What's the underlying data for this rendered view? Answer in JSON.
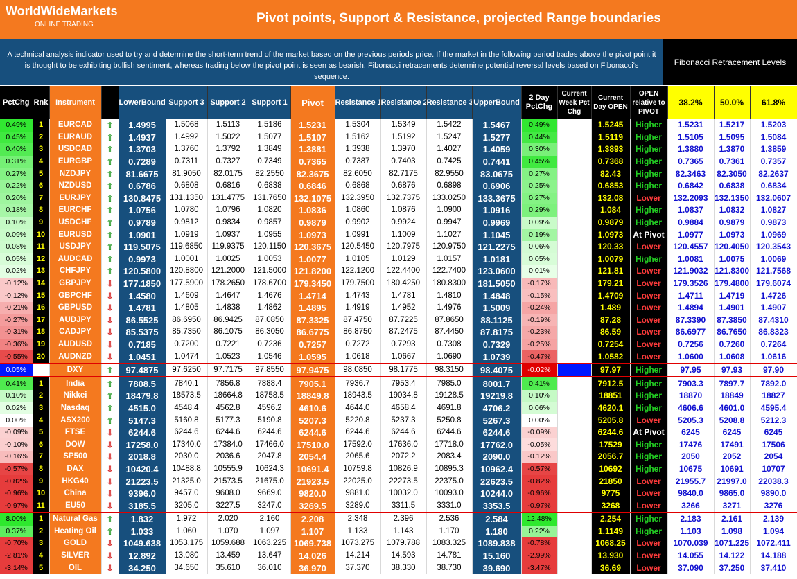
{
  "header": {
    "brand": "WorldWideMarkets",
    "brand_sub": "ONLINE TRADING",
    "title": "Pivot points, Support & Resistance, projected Range boundaries"
  },
  "description": "A technical analysis indicator used to try and determine the short-term trend of the market based on the previous periods price. If the market in the following period trades above the pivot point it is thought to be exhibiting bullish sentiment, whereas trading below the pivot point is seen as bearish. Fibonacci retracements determine potential reversal levels based on Fibonacci's sequence.",
  "fib_title": "Fibonacci Retracement Levels",
  "columns": {
    "pct": "PctChg",
    "rnk": "Rnk",
    "instrument": "Instrument",
    "lower": "LowerBound",
    "s3": "Support 3",
    "s2": "Support 2",
    "s1": "Support 1",
    "pivot": "Pivot",
    "r1": "Resistance 1",
    "r2": "Resistance 2",
    "r3": "Resistance 3",
    "upper": "UpperBound",
    "twoday": "2 Day PctChg",
    "week": "Current Week Pct Chg",
    "open": "Current Day OPEN",
    "rel": "OPEN relative to PIVOT",
    "f38": "38.2%",
    "f50": "50.0%",
    "f61": "61.8%"
  },
  "colors": {
    "orange": "#f4791f",
    "navy": "#174f7d",
    "up_arrow": "#2e9e2e",
    "down_arrow": "#d62d2d",
    "higher": "#22cc22",
    "lower": "#ff3b3b",
    "fib_text": "#1010d0"
  },
  "rows": [
    {
      "pct": "0.49%",
      "rnk": "1",
      "inst": "EURCAD",
      "dir": "up",
      "lb": "1.4995",
      "s3": "1.5068",
      "s2": "1.5113",
      "s1": "1.5186",
      "pv": "1.5231",
      "r1": "1.5304",
      "r2": "1.5349",
      "r3": "1.5422",
      "ub": "1.5467",
      "two": "0.49%",
      "open": "1.5245",
      "rel": "Higher",
      "f38": "1.5231",
      "f50": "1.5217",
      "f61": "1.5203"
    },
    {
      "pct": "0.45%",
      "rnk": "2",
      "inst": "EURAUD",
      "dir": "up",
      "lb": "1.4937",
      "s3": "1.4992",
      "s2": "1.5022",
      "s1": "1.5077",
      "pv": "1.5107",
      "r1": "1.5162",
      "r2": "1.5192",
      "r3": "1.5247",
      "ub": "1.5277",
      "two": "0.44%",
      "open": "1.5119",
      "rel": "Higher",
      "f38": "1.5105",
      "f50": "1.5095",
      "f61": "1.5084"
    },
    {
      "pct": "0.40%",
      "rnk": "3",
      "inst": "USDCAD",
      "dir": "up",
      "lb": "1.3703",
      "s3": "1.3760",
      "s2": "1.3792",
      "s1": "1.3849",
      "pv": "1.3881",
      "r1": "1.3938",
      "r2": "1.3970",
      "r3": "1.4027",
      "ub": "1.4059",
      "two": "0.30%",
      "open": "1.3893",
      "rel": "Higher",
      "f38": "1.3880",
      "f50": "1.3870",
      "f61": "1.3859"
    },
    {
      "pct": "0.31%",
      "rnk": "4",
      "inst": "EURGBP",
      "dir": "up",
      "lb": "0.7289",
      "s3": "0.7311",
      "s2": "0.7327",
      "s1": "0.7349",
      "pv": "0.7365",
      "r1": "0.7387",
      "r2": "0.7403",
      "r3": "0.7425",
      "ub": "0.7441",
      "two": "0.45%",
      "open": "0.7368",
      "rel": "Higher",
      "f38": "0.7365",
      "f50": "0.7361",
      "f61": "0.7357"
    },
    {
      "pct": "0.27%",
      "rnk": "5",
      "inst": "NZDJPY",
      "dir": "up",
      "lb": "81.6675",
      "s3": "81.9050",
      "s2": "82.0175",
      "s1": "82.2550",
      "pv": "82.3675",
      "r1": "82.6050",
      "r2": "82.7175",
      "r3": "82.9550",
      "ub": "83.0675",
      "two": "0.27%",
      "open": "82.43",
      "rel": "Higher",
      "f38": "82.3463",
      "f50": "82.3050",
      "f61": "82.2637"
    },
    {
      "pct": "0.22%",
      "rnk": "6",
      "inst": "NZDUSD",
      "dir": "up",
      "lb": "0.6786",
      "s3": "0.6808",
      "s2": "0.6816",
      "s1": "0.6838",
      "pv": "0.6846",
      "r1": "0.6868",
      "r2": "0.6876",
      "r3": "0.6898",
      "ub": "0.6906",
      "two": "0.25%",
      "open": "0.6853",
      "rel": "Higher",
      "f38": "0.6842",
      "f50": "0.6838",
      "f61": "0.6834"
    },
    {
      "pct": "0.20%",
      "rnk": "7",
      "inst": "EURJPY",
      "dir": "up",
      "lb": "130.8475",
      "s3": "131.1350",
      "s2": "131.4775",
      "s1": "131.7650",
      "pv": "132.1075",
      "r1": "132.3950",
      "r2": "132.7375",
      "r3": "133.0250",
      "ub": "133.3675",
      "two": "0.27%",
      "open": "132.08",
      "rel": "Lower",
      "f38": "132.2093",
      "f50": "132.1350",
      "f61": "132.0607"
    },
    {
      "pct": "0.18%",
      "rnk": "8",
      "inst": "EURCHF",
      "dir": "up",
      "lb": "1.0756",
      "s3": "1.0780",
      "s2": "1.0796",
      "s1": "1.0820",
      "pv": "1.0836",
      "r1": "1.0860",
      "r2": "1.0876",
      "r3": "1.0900",
      "ub": "1.0916",
      "two": "0.29%",
      "open": "1.084",
      "rel": "Higher",
      "f38": "1.0837",
      "f50": "1.0832",
      "f61": "1.0827"
    },
    {
      "pct": "0.10%",
      "rnk": "9",
      "inst": "USDCHF",
      "dir": "up",
      "lb": "0.9789",
      "s3": "0.9812",
      "s2": "0.9834",
      "s1": "0.9857",
      "pv": "0.9879",
      "r1": "0.9902",
      "r2": "0.9924",
      "r3": "0.9947",
      "ub": "0.9969",
      "two": "0.09%",
      "open": "0.9879",
      "rel": "Higher",
      "f38": "0.9884",
      "f50": "0.9879",
      "f61": "0.9873"
    },
    {
      "pct": "0.09%",
      "rnk": "10",
      "inst": "EURUSD",
      "dir": "up",
      "lb": "1.0901",
      "s3": "1.0919",
      "s2": "1.0937",
      "s1": "1.0955",
      "pv": "1.0973",
      "r1": "1.0991",
      "r2": "1.1009",
      "r3": "1.1027",
      "ub": "1.1045",
      "two": "0.19%",
      "open": "1.0973",
      "rel": "At Pivot",
      "f38": "1.0977",
      "f50": "1.0973",
      "f61": "1.0969"
    },
    {
      "pct": "0.08%",
      "rnk": "11",
      "inst": "USDJPY",
      "dir": "up",
      "lb": "119.5075",
      "s3": "119.6850",
      "s2": "119.9375",
      "s1": "120.1150",
      "pv": "120.3675",
      "r1": "120.5450",
      "r2": "120.7975",
      "r3": "120.9750",
      "ub": "121.2275",
      "two": "0.06%",
      "open": "120.33",
      "rel": "Lower",
      "f38": "120.4557",
      "f50": "120.4050",
      "f61": "120.3543"
    },
    {
      "pct": "0.05%",
      "rnk": "12",
      "inst": "AUDCAD",
      "dir": "up",
      "lb": "0.9973",
      "s3": "1.0001",
      "s2": "1.0025",
      "s1": "1.0053",
      "pv": "1.0077",
      "r1": "1.0105",
      "r2": "1.0129",
      "r3": "1.0157",
      "ub": "1.0181",
      "two": "0.05%",
      "open": "1.0079",
      "rel": "Higher",
      "f38": "1.0081",
      "f50": "1.0075",
      "f61": "1.0069"
    },
    {
      "pct": "0.02%",
      "rnk": "13",
      "inst": "CHFJPY",
      "dir": "up",
      "lb": "120.5800",
      "s3": "120.8800",
      "s2": "121.2000",
      "s1": "121.5000",
      "pv": "121.8200",
      "r1": "122.1200",
      "r2": "122.4400",
      "r3": "122.7400",
      "ub": "123.0600",
      "two": "0.01%",
      "open": "121.81",
      "rel": "Lower",
      "f38": "121.9032",
      "f50": "121.8300",
      "f61": "121.7568"
    },
    {
      "pct": "-0.12%",
      "rnk": "14",
      "inst": "GBPJPY",
      "dir": "down",
      "lb": "177.1850",
      "s3": "177.5900",
      "s2": "178.2650",
      "s1": "178.6700",
      "pv": "179.3450",
      "r1": "179.7500",
      "r2": "180.4250",
      "r3": "180.8300",
      "ub": "181.5050",
      "two": "-0.17%",
      "open": "179.21",
      "rel": "Lower",
      "f38": "179.3526",
      "f50": "179.4800",
      "f61": "179.6074"
    },
    {
      "pct": "-0.12%",
      "rnk": "15",
      "inst": "GBPCHF",
      "dir": "down",
      "lb": "1.4580",
      "s3": "1.4609",
      "s2": "1.4647",
      "s1": "1.4676",
      "pv": "1.4714",
      "r1": "1.4743",
      "r2": "1.4781",
      "r3": "1.4810",
      "ub": "1.4848",
      "two": "-0.15%",
      "open": "1.4709",
      "rel": "Lower",
      "f38": "1.4711",
      "f50": "1.4719",
      "f61": "1.4726"
    },
    {
      "pct": "-0.21%",
      "rnk": "16",
      "inst": "GBPUSD",
      "dir": "down",
      "lb": "1.4781",
      "s3": "1.4805",
      "s2": "1.4838",
      "s1": "1.4862",
      "pv": "1.4895",
      "r1": "1.4919",
      "r2": "1.4952",
      "r3": "1.4976",
      "ub": "1.5009",
      "two": "-0.24%",
      "open": "1.489",
      "rel": "Lower",
      "f38": "1.4894",
      "f50": "1.4901",
      "f61": "1.4907"
    },
    {
      "pct": "-0.27%",
      "rnk": "17",
      "inst": "AUDJPY",
      "dir": "down",
      "lb": "86.5525",
      "s3": "86.6950",
      "s2": "86.9425",
      "s1": "87.0850",
      "pv": "87.3325",
      "r1": "87.4750",
      "r2": "87.7225",
      "r3": "87.8650",
      "ub": "88.1125",
      "two": "-0.19%",
      "open": "87.28",
      "rel": "Lower",
      "f38": "87.3390",
      "f50": "87.3850",
      "f61": "87.4310"
    },
    {
      "pct": "-0.31%",
      "rnk": "18",
      "inst": "CADJPY",
      "dir": "down",
      "lb": "85.5375",
      "s3": "85.7350",
      "s2": "86.1075",
      "s1": "86.3050",
      "pv": "86.6775",
      "r1": "86.8750",
      "r2": "87.2475",
      "r3": "87.4450",
      "ub": "87.8175",
      "two": "-0.23%",
      "open": "86.59",
      "rel": "Lower",
      "f38": "86.6977",
      "f50": "86.7650",
      "f61": "86.8323"
    },
    {
      "pct": "-0.36%",
      "rnk": "19",
      "inst": "AUDUSD",
      "dir": "down",
      "lb": "0.7185",
      "s3": "0.7200",
      "s2": "0.7221",
      "s1": "0.7236",
      "pv": "0.7257",
      "r1": "0.7272",
      "r2": "0.7293",
      "r3": "0.7308",
      "ub": "0.7329",
      "two": "-0.25%",
      "open": "0.7254",
      "rel": "Lower",
      "f38": "0.7256",
      "f50": "0.7260",
      "f61": "0.7264"
    },
    {
      "pct": "-0.55%",
      "rnk": "20",
      "inst": "AUDNZD",
      "dir": "down",
      "lb": "1.0451",
      "s3": "1.0474",
      "s2": "1.0523",
      "s1": "1.0546",
      "pv": "1.0595",
      "r1": "1.0618",
      "r2": "1.0667",
      "r3": "1.0690",
      "ub": "1.0739",
      "two": "-0.47%",
      "open": "1.0582",
      "rel": "Lower",
      "f38": "1.0600",
      "f50": "1.0608",
      "f61": "1.0616"
    },
    {
      "pct": "0.05%",
      "rnk": "",
      "inst": "DXY",
      "dir": "up",
      "lb": "97.4875",
      "s3": "97.6250",
      "s2": "97.7175",
      "s1": "97.8550",
      "pv": "97.9475",
      "r1": "98.0850",
      "r2": "98.1775",
      "r3": "98.3150",
      "ub": "98.4075",
      "two": "-0.02%",
      "open": "97.97",
      "rel": "Higher",
      "f38": "97.95",
      "f50": "97.93",
      "f61": "97.90",
      "special": "dxy"
    },
    {
      "pct": "0.41%",
      "rnk": "1",
      "inst": "India",
      "dir": "up",
      "lb": "7808.5",
      "s3": "7840.1",
      "s2": "7856.8",
      "s1": "7888.4",
      "pv": "7905.1",
      "r1": "7936.7",
      "r2": "7953.4",
      "r3": "7985.0",
      "ub": "8001.7",
      "two": "0.41%",
      "open": "7912.5",
      "rel": "Higher",
      "f38": "7903.3",
      "f50": "7897.7",
      "f61": "7892.0"
    },
    {
      "pct": "0.10%",
      "rnk": "2",
      "inst": "Nikkei",
      "dir": "up",
      "lb": "18479.8",
      "s3": "18573.5",
      "s2": "18664.8",
      "s1": "18758.5",
      "pv": "18849.8",
      "r1": "18943.5",
      "r2": "19034.8",
      "r3": "19128.5",
      "ub": "19219.8",
      "two": "0.10%",
      "open": "18851",
      "rel": "Higher",
      "f38": "18870",
      "f50": "18849",
      "f61": "18827"
    },
    {
      "pct": "0.02%",
      "rnk": "3",
      "inst": "Nasdaq",
      "dir": "up",
      "lb": "4515.0",
      "s3": "4548.4",
      "s2": "4562.8",
      "s1": "4596.2",
      "pv": "4610.6",
      "r1": "4644.0",
      "r2": "4658.4",
      "r3": "4691.8",
      "ub": "4706.2",
      "two": "0.06%",
      "open": "4620.1",
      "rel": "Higher",
      "f38": "4606.6",
      "f50": "4601.0",
      "f61": "4595.4"
    },
    {
      "pct": "0.00%",
      "rnk": "4",
      "inst": "ASX200",
      "dir": "up",
      "lb": "5147.3",
      "s3": "5160.8",
      "s2": "5177.3",
      "s1": "5190.8",
      "pv": "5207.3",
      "r1": "5220.8",
      "r2": "5237.3",
      "r3": "5250.8",
      "ub": "5267.3",
      "two": "0.00%",
      "open": "5205.8",
      "rel": "Lower",
      "f38": "5205.3",
      "f50": "5208.8",
      "f61": "5212.3"
    },
    {
      "pct": "-0.09%",
      "rnk": "5",
      "inst": "FTSE",
      "dir": "down",
      "lb": "6244.6",
      "s3": "6244.6",
      "s2": "6244.6",
      "s1": "6244.6",
      "pv": "6244.6",
      "r1": "6244.6",
      "r2": "6244.6",
      "r3": "6244.6",
      "ub": "6244.6",
      "two": "-0.09%",
      "open": "6244.6",
      "rel": "At Pivot",
      "f38": "6245",
      "f50": "6245",
      "f61": "6245"
    },
    {
      "pct": "-0.10%",
      "rnk": "6",
      "inst": "DOW",
      "dir": "down",
      "lb": "17258.0",
      "s3": "17340.0",
      "s2": "17384.0",
      "s1": "17466.0",
      "pv": "17510.0",
      "r1": "17592.0",
      "r2": "17636.0",
      "r3": "17718.0",
      "ub": "17762.0",
      "two": "-0.05%",
      "open": "17529",
      "rel": "Higher",
      "f38": "17476",
      "f50": "17491",
      "f61": "17506"
    },
    {
      "pct": "-0.16%",
      "rnk": "7",
      "inst": "SP500",
      "dir": "down",
      "lb": "2018.8",
      "s3": "2030.0",
      "s2": "2036.6",
      "s1": "2047.8",
      "pv": "2054.4",
      "r1": "2065.6",
      "r2": "2072.2",
      "r3": "2083.4",
      "ub": "2090.0",
      "two": "-0.12%",
      "open": "2056.7",
      "rel": "Higher",
      "f38": "2050",
      "f50": "2052",
      "f61": "2054"
    },
    {
      "pct": "-0.57%",
      "rnk": "8",
      "inst": "DAX",
      "dir": "down",
      "lb": "10420.4",
      "s3": "10488.8",
      "s2": "10555.9",
      "s1": "10624.3",
      "pv": "10691.4",
      "r1": "10759.8",
      "r2": "10826.9",
      "r3": "10895.3",
      "ub": "10962.4",
      "two": "-0.57%",
      "open": "10692",
      "rel": "Higher",
      "f38": "10675",
      "f50": "10691",
      "f61": "10707"
    },
    {
      "pct": "-0.82%",
      "rnk": "9",
      "inst": "HKG40",
      "dir": "down",
      "lb": "21223.5",
      "s3": "21325.0",
      "s2": "21573.5",
      "s1": "21675.0",
      "pv": "21923.5",
      "r1": "22025.0",
      "r2": "22273.5",
      "r3": "22375.0",
      "ub": "22623.5",
      "two": "-0.82%",
      "open": "21850",
      "rel": "Lower",
      "f38": "21955.7",
      "f50": "21997.0",
      "f61": "22038.3"
    },
    {
      "pct": "-0.96%",
      "rnk": "10",
      "inst": "China",
      "dir": "down",
      "lb": "9396.0",
      "s3": "9457.0",
      "s2": "9608.0",
      "s1": "9669.0",
      "pv": "9820.0",
      "r1": "9881.0",
      "r2": "10032.0",
      "r3": "10093.0",
      "ub": "10244.0",
      "two": "-0.96%",
      "open": "9775",
      "rel": "Lower",
      "f38": "9840.0",
      "f50": "9865.0",
      "f61": "9890.0"
    },
    {
      "pct": "-0.97%",
      "rnk": "11",
      "inst": "EU50",
      "dir": "down",
      "lb": "3185.5",
      "s3": "3205.0",
      "s2": "3227.5",
      "s1": "3247.0",
      "pv": "3269.5",
      "r1": "3289.0",
      "r2": "3311.5",
      "r3": "3331.0",
      "ub": "3353.5",
      "two": "-0.97%",
      "open": "3268",
      "rel": "Lower",
      "f38": "3266",
      "f50": "3271",
      "f61": "3276"
    },
    {
      "pct": "8.00%",
      "rnk": "1",
      "inst": "Natural Gas",
      "dir": "up",
      "lb": "1.832",
      "s3": "1.972",
      "s2": "2.020",
      "s1": "2.160",
      "pv": "2.208",
      "r1": "2.348",
      "r2": "2.396",
      "r3": "2.536",
      "ub": "2.584",
      "two": "12.48%",
      "open": "2.254",
      "rel": "Higher",
      "f38": "2.183",
      "f50": "2.161",
      "f61": "2.139",
      "special": "sep"
    },
    {
      "pct": "0.37%",
      "rnk": "2",
      "inst": "Heating Oil",
      "dir": "up",
      "lb": "1.033",
      "s3": "1.060",
      "s2": "1.070",
      "s1": "1.097",
      "pv": "1.107",
      "r1": "1.133",
      "r2": "1.143",
      "r3": "1.170",
      "ub": "1.180",
      "two": "0.22%",
      "open": "1.1149",
      "rel": "Higher",
      "f38": "1.103",
      "f50": "1.098",
      "f61": "1.094"
    },
    {
      "pct": "-0.70%",
      "rnk": "3",
      "inst": "GOLD",
      "dir": "down",
      "lb": "1049.638",
      "s3": "1053.175",
      "s2": "1059.688",
      "s1": "1063.225",
      "pv": "1069.738",
      "r1": "1073.275",
      "r2": "1079.788",
      "r3": "1083.325",
      "ub": "1089.838",
      "two": "-0.78%",
      "open": "1068.25",
      "rel": "Lower",
      "f38": "1070.039",
      "f50": "1071.225",
      "f61": "1072.411"
    },
    {
      "pct": "-2.81%",
      "rnk": "4",
      "inst": "SILVER",
      "dir": "down",
      "lb": "12.892",
      "s3": "13.080",
      "s2": "13.459",
      "s1": "13.647",
      "pv": "14.026",
      "r1": "14.214",
      "r2": "14.593",
      "r3": "14.781",
      "ub": "15.160",
      "two": "-2.99%",
      "open": "13.930",
      "rel": "Lower",
      "f38": "14.055",
      "f50": "14.122",
      "f61": "14.188"
    },
    {
      "pct": "-3.14%",
      "rnk": "5",
      "inst": "OIL",
      "dir": "down",
      "lb": "34.250",
      "s3": "34.650",
      "s2": "35.610",
      "s1": "36.010",
      "pv": "36.970",
      "r1": "37.370",
      "r2": "38.330",
      "r3": "38.730",
      "ub": "39.690",
      "two": "-3.47%",
      "open": "36.69",
      "rel": "Lower",
      "f38": "37.090",
      "f50": "37.250",
      "f61": "37.410"
    }
  ]
}
